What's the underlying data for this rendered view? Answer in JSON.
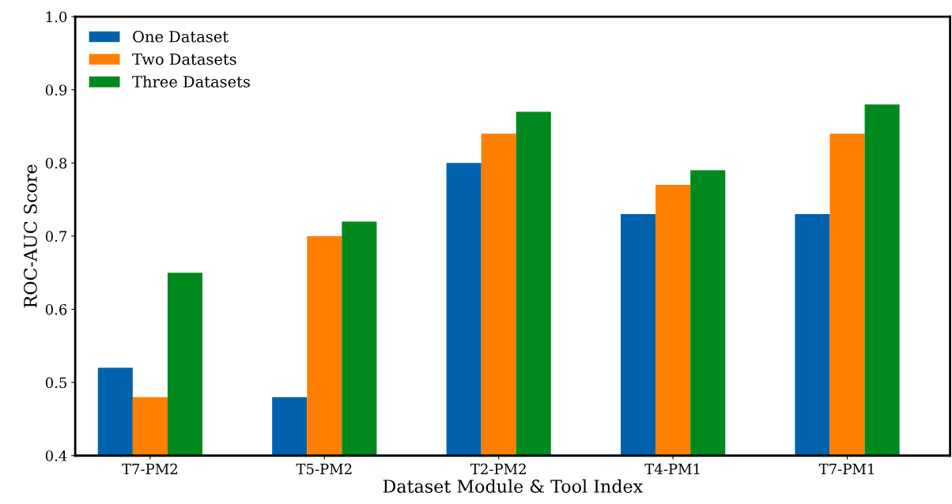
{
  "chart_data": {
    "type": "bar",
    "xlabel": "Dataset Module & Tool Index",
    "ylabel": "ROC-AUC Score",
    "categories": [
      "T7-PM2",
      "T5-PM2",
      "T2-PM2",
      "T4-PM1",
      "T7-PM1"
    ],
    "series": [
      {
        "name": "One Dataset",
        "color": "#0062ad",
        "values": [
          0.52,
          0.48,
          0.8,
          0.73,
          0.73
        ]
      },
      {
        "name": "Two Datasets",
        "color": "#ff7f00",
        "values": [
          0.48,
          0.7,
          0.84,
          0.77,
          0.84
        ]
      },
      {
        "name": "Three Datasets",
        "color": "#00891e",
        "values": [
          0.65,
          0.72,
          0.87,
          0.79,
          0.88
        ]
      }
    ],
    "ylim": [
      0.4,
      1.0
    ],
    "yticks": [
      0.4,
      0.5,
      0.6,
      0.7,
      0.8,
      0.9,
      {
        "value": 1.0,
        "label": "1.0"
      }
    ],
    "grid": false,
    "legend": "top left"
  }
}
